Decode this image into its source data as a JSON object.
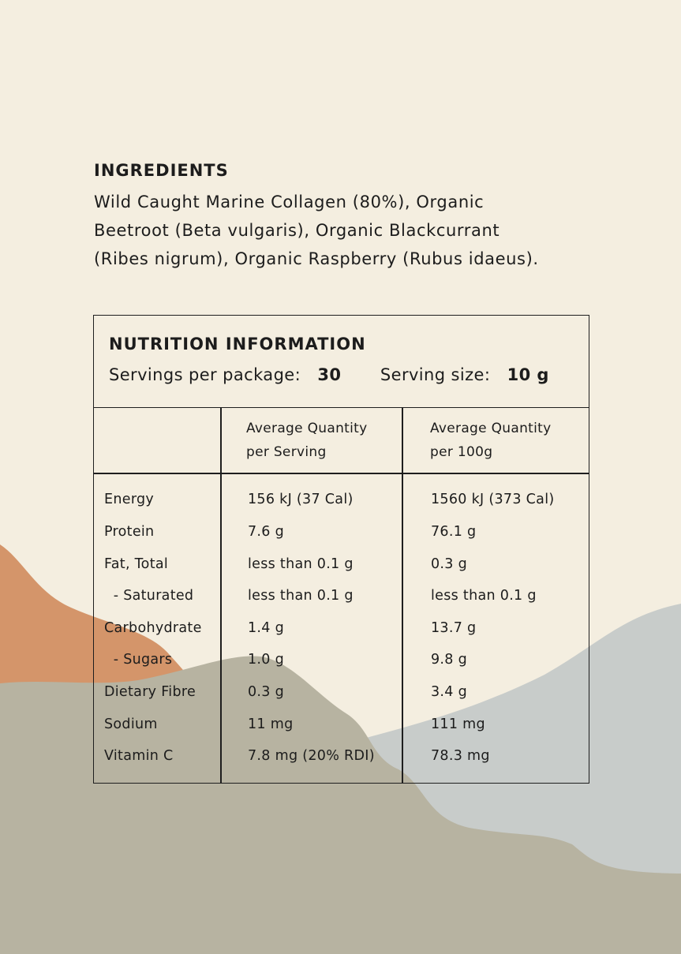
{
  "ingredients": {
    "title": "INGREDIENTS",
    "lines": [
      "Wild Caught Marine Collagen (80%), Organic",
      "Beetroot (Beta vulgaris), Organic Blackcurrant",
      "(Ribes nigrum), Organic Raspberry (Rubus idaeus)."
    ]
  },
  "nutrition": {
    "title": "NUTRITION INFORMATION",
    "servings_label": "Servings per package:",
    "servings_value": "30",
    "size_label": "Serving size:",
    "size_value": "10 g",
    "col_serving": [
      "Average Quantity",
      "per Serving"
    ],
    "col_100g": [
      "Average Quantity",
      "per 100g"
    ],
    "rows": [
      {
        "name": "Energy",
        "serving": "156 kJ  (37 Cal)",
        "per100": "1560 kJ  (373 Cal)"
      },
      {
        "name": "Protein",
        "serving": "7.6 g",
        "per100": "76.1 g"
      },
      {
        "name": "Fat, Total",
        "serving": "less than 0.1 g",
        "per100": "0.3 g"
      },
      {
        "name": "  - Saturated",
        "serving": "less than 0.1 g",
        "per100": "less than 0.1 g"
      },
      {
        "name": "Carbohydrate",
        "serving": "1.4 g",
        "per100": "13.7 g"
      },
      {
        "name": "  - Sugars",
        "serving": "1.0 g",
        "per100": "9.8 g"
      },
      {
        "name": "Dietary Fibre",
        "serving": "0.3 g",
        "per100": "3.4 g"
      },
      {
        "name": "Sodium",
        "serving": "11 mg",
        "per100": "111 mg"
      },
      {
        "name": "Vitamin C",
        "serving": "7.8 mg (20% RDI)",
        "per100": "78.3 mg"
      }
    ]
  },
  "colors": {
    "background": "#f4eee0",
    "orange": "#d4956a",
    "blue_grey": "#c8ccca",
    "khaki": "#b7b3a1",
    "text": "#1c1c1c"
  }
}
